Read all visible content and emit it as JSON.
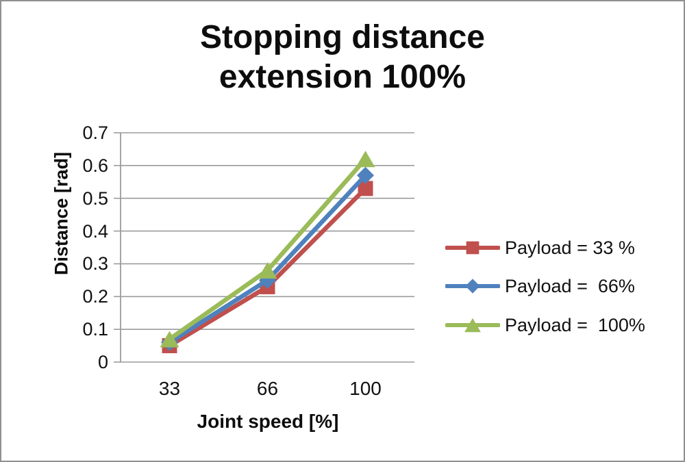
{
  "title": {
    "line1": "Stopping distance",
    "line2": "extension 100%"
  },
  "chart_data": {
    "type": "line",
    "title": "Stopping distance extension 100%",
    "categories": [
      "33",
      "66",
      "100"
    ],
    "series": [
      {
        "name": "Payload = 33 %",
        "values": [
          0.05,
          0.23,
          0.53
        ],
        "color": "#C0504D",
        "marker": "square"
      },
      {
        "name": "Payload =  66%",
        "values": [
          0.06,
          0.25,
          0.57
        ],
        "color": "#4F81BD",
        "marker": "diamond"
      },
      {
        "name": "Payload =  100%",
        "values": [
          0.07,
          0.28,
          0.62
        ],
        "color": "#9BBB59",
        "marker": "triangle"
      }
    ],
    "xlabel": "Joint speed [%]",
    "ylabel": "Distance [rad]",
    "ylim": [
      0,
      0.7
    ],
    "ytick_step": 0.1,
    "yticks": [
      "0",
      "0.1",
      "0.2",
      "0.3",
      "0.4",
      "0.5",
      "0.6",
      "0.7"
    ],
    "grid": true,
    "gridline_color": "#999b9d",
    "axis_color": "#999b9d",
    "legend_position": "right"
  }
}
